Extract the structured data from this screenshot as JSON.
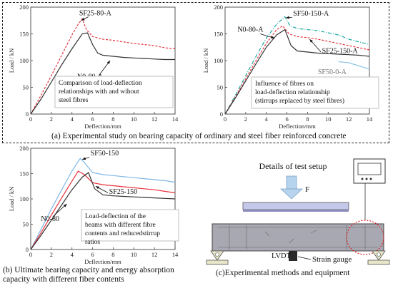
{
  "figure": {
    "caption_a": "(a)  Experimental study on bearing capacity of ordinary and steel fiber reinforced concrete",
    "caption_b": "(b)  Ultimate bearing capacity and energy absorption capacity with different fiber contents",
    "caption_c": "(c)Experimental methods and equipment"
  },
  "setup": {
    "title": "Details of test setup",
    "load_label": "F",
    "lvdt_label": "LVDT",
    "gauge_label": "Strain gauge"
  },
  "chart_data": [
    {
      "type": "line",
      "xlabel": "Deflection/mm",
      "ylabel": "Load / kN",
      "xlim": [
        0,
        14
      ],
      "ylim": [
        0,
        200
      ],
      "xticks": [
        0,
        2,
        4,
        6,
        8,
        10,
        12,
        14
      ],
      "yticks": [
        0,
        50,
        100,
        150,
        200
      ],
      "note": "Comparison of load-deflection relationships with and wihout steel fibres",
      "series": [
        {
          "name": "SF25-80-A",
          "color": "#e8323c",
          "dash": "3,2",
          "x": [
            0,
            1,
            2,
            3,
            4,
            4.6,
            5.0,
            5.4,
            6.0,
            7.0,
            8.0,
            9.0,
            10.0,
            11.0,
            12.0,
            13.0,
            14.0
          ],
          "y": [
            0,
            35,
            72,
            110,
            148,
            168,
            178,
            158,
            145,
            140,
            138,
            135,
            132,
            130,
            128,
            124,
            122
          ]
        },
        {
          "name": "N0-80-A",
          "color": "#333333",
          "dash": "",
          "x": [
            0,
            1,
            2,
            3,
            4,
            5.0,
            5.5,
            6.0,
            6.5,
            7.0,
            8.0,
            9.0,
            10.0,
            11.0,
            12.0,
            13.0,
            14.0
          ],
          "y": [
            0,
            28,
            60,
            92,
            122,
            150,
            152,
            130,
            114,
            110,
            108,
            106,
            105,
            104,
            103,
            102,
            102
          ]
        }
      ]
    },
    {
      "type": "line",
      "xlabel": "Deflection/mm",
      "ylabel": "Load / kN",
      "xlim": [
        0,
        14
      ],
      "ylim": [
        0,
        200
      ],
      "xticks": [
        0,
        2,
        4,
        6,
        8,
        10,
        12,
        14
      ],
      "yticks": [
        0,
        50,
        100,
        150,
        200
      ],
      "note": "Influence of fibres on load-deflection relationship (stirrups replaced by steel fibres)",
      "series": [
        {
          "name": "SF50-150-A",
          "color": "#1aa8a0",
          "dash": "5,2,1,2",
          "x": [
            0,
            1,
            2,
            3,
            4,
            5,
            5.8,
            6.3,
            7,
            8,
            9,
            10,
            11,
            12,
            13,
            14
          ],
          "y": [
            0,
            35,
            72,
            108,
            142,
            168,
            182,
            165,
            160,
            158,
            156,
            152,
            148,
            140,
            135,
            130
          ]
        },
        {
          "name": "SF25-150-A",
          "color": "#e8323c",
          "dash": "3,2",
          "x": [
            0,
            1,
            2,
            3,
            4,
            5,
            5.6,
            6.2,
            7,
            8,
            9,
            10,
            11,
            12,
            13,
            14
          ],
          "y": [
            0,
            32,
            66,
            100,
            132,
            158,
            165,
            150,
            145,
            143,
            140,
            136,
            132,
            128,
            124,
            120
          ]
        },
        {
          "name": "N0-80-A",
          "color": "#333333",
          "dash": "",
          "x": [
            0,
            1,
            2,
            3,
            4,
            5,
            5.8,
            6.4,
            7,
            8,
            9,
            10,
            11,
            12,
            13,
            14
          ],
          "y": [
            0,
            30,
            62,
            94,
            125,
            148,
            158,
            128,
            118,
            116,
            114,
            113,
            112,
            111,
            110,
            108
          ]
        },
        {
          "name": "SF50-0-A",
          "color": "#8ec4e6",
          "dash": "",
          "x": [
            11,
            12,
            13,
            14
          ],
          "y": [
            98,
            96,
            90,
            84
          ]
        }
      ]
    },
    {
      "type": "line",
      "xlabel": "Deflection/mm",
      "ylabel": "Load / kN",
      "xlim": [
        0,
        14
      ],
      "ylim": [
        0,
        200
      ],
      "xticks": [
        0,
        2,
        4,
        6,
        8,
        10,
        12,
        14
      ],
      "yticks": [
        0,
        50,
        100,
        150,
        200
      ],
      "note": "Load-deflection of the beams with different fibre contents and reducedstirrup ratios",
      "series": [
        {
          "name": "SF50-150",
          "color": "#7fb6e6",
          "dash": "",
          "x": [
            0,
            1,
            2,
            3,
            4,
            4.8,
            5.2,
            6,
            7,
            8,
            9,
            10,
            11,
            12,
            13,
            14
          ],
          "y": [
            0,
            40,
            80,
            118,
            155,
            180,
            172,
            152,
            148,
            146,
            144,
            142,
            140,
            138,
            136,
            133
          ]
        },
        {
          "name": "SF25-150",
          "color": "#e8323c",
          "dash": "",
          "x": [
            0,
            1,
            2,
            3,
            4,
            4.6,
            5.2,
            6,
            7,
            8,
            9,
            10,
            11,
            12,
            13,
            14
          ],
          "y": [
            0,
            33,
            68,
            102,
            135,
            155,
            148,
            132,
            128,
            126,
            124,
            122,
            120,
            118,
            115,
            112
          ]
        },
        {
          "name": "N0-80",
          "color": "#333333",
          "dash": "",
          "x": [
            0,
            1,
            2,
            3,
            4,
            5,
            5.6,
            6.2,
            7,
            8,
            9,
            10,
            11,
            12,
            13,
            14
          ],
          "y": [
            0,
            28,
            58,
            88,
            118,
            143,
            152,
            120,
            108,
            106,
            105,
            104,
            103,
            102,
            101,
            100
          ]
        }
      ]
    }
  ]
}
